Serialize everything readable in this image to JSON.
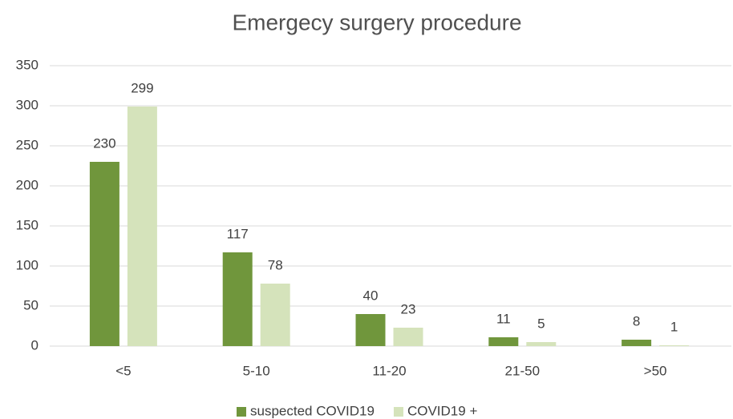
{
  "chart_data": {
    "type": "bar",
    "title": "Emergecy surgery procedure",
    "categories": [
      "<5",
      "5-10",
      "11-20",
      "21-50",
      ">50"
    ],
    "series": [
      {
        "name": "suspected COVID19",
        "color": "#70963c",
        "values": [
          230,
          117,
          40,
          11,
          8
        ]
      },
      {
        "name": "COVID19 +",
        "color": "#d5e3bb",
        "values": [
          299,
          78,
          23,
          5,
          1
        ]
      }
    ],
    "ylim": [
      0,
      350
    ],
    "yticks": [
      0,
      50,
      100,
      150,
      200,
      250,
      300,
      350
    ],
    "grid": true,
    "legend": "bottom"
  }
}
